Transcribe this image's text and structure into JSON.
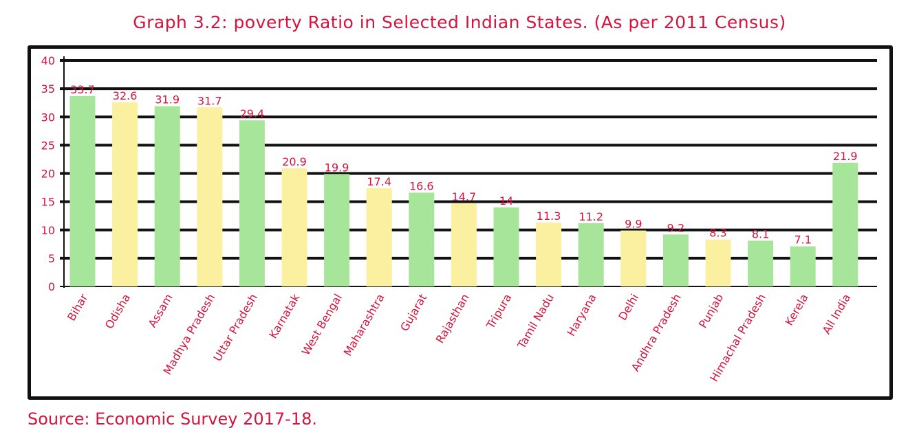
{
  "title": "Graph 3.2: poverty Ratio in Selected Indian States. (As per 2011 Census)",
  "source": "Source: Economic Survey 2017-18.",
  "colors": {
    "text": "#d4143c",
    "green": "#a7e69a",
    "yellow": "#fbf0a0",
    "grid": "#111111"
  },
  "chart_data": {
    "type": "bar",
    "title": "Graph 3.2: poverty Ratio in Selected Indian States. (As per 2011 Census)",
    "xlabel": "",
    "ylabel": "",
    "ylim": [
      0,
      40
    ],
    "yticks": [
      0,
      5,
      10,
      15,
      20,
      25,
      30,
      35,
      40
    ],
    "grid": true,
    "categories": [
      "Bihar",
      "Odisha",
      "Assam",
      "Madhya Pradesh",
      "Uttar Pradesh",
      "Karnatak",
      "West Bengal",
      "Maharashtra",
      "Gujarat",
      "Rajasthan",
      "Tripura",
      "Tamil Nadu",
      "Haryana",
      "Delhi",
      "Andhra Pradesh",
      "Punjab",
      "Himachal Pradesh",
      "Kerela",
      "All India"
    ],
    "values": [
      33.7,
      32.6,
      31.9,
      31.7,
      29.4,
      20.9,
      19.9,
      17.4,
      16.6,
      14.7,
      14,
      11.3,
      11.2,
      9.9,
      9.2,
      8.3,
      8.1,
      7.1,
      21.9
    ],
    "value_labels": [
      "33.7",
      "32.6",
      "31.9",
      "31.7",
      "29.4",
      "20.9",
      "19.9",
      "17.4",
      "16.6",
      "14.7",
      "14",
      "11.3",
      "11.2",
      "9.9",
      "9.2",
      "8.3",
      "8.1",
      "7.1",
      "21.9"
    ],
    "bar_colors": [
      "green",
      "yellow",
      "green",
      "yellow",
      "green",
      "yellow",
      "green",
      "yellow",
      "green",
      "yellow",
      "green",
      "yellow",
      "green",
      "yellow",
      "green",
      "yellow",
      "green",
      "green",
      "green"
    ]
  }
}
